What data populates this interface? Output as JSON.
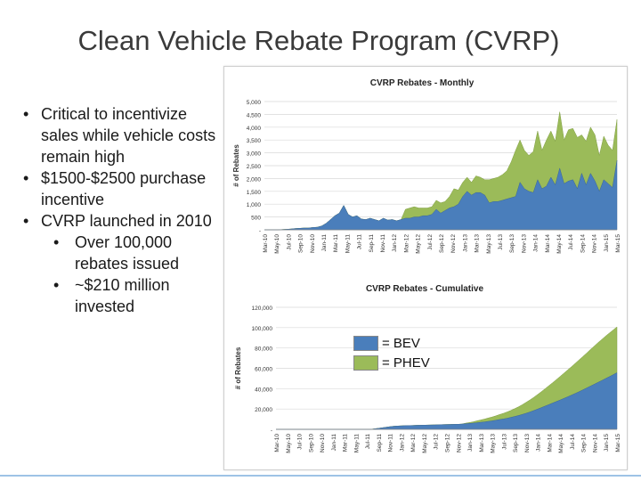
{
  "slide": {
    "title": "Clean Vehicle Rebate Program (CVRP)",
    "bullets": [
      {
        "level": 1,
        "text": "Critical to incentivize sales while vehicle costs remain high"
      },
      {
        "level": 1,
        "text": "$1500-$2500 purchase incentive"
      },
      {
        "level": 1,
        "text": "CVRP launched  in 2010"
      },
      {
        "level": 2,
        "text": "Over 100,000 rebates issued"
      },
      {
        "level": 2,
        "text": "~$210 million invested"
      }
    ],
    "bullet_glyph": "•"
  },
  "legend": {
    "items": [
      {
        "label": "= BEV",
        "color": "#4a7ebb"
      },
      {
        "label": "= PHEV",
        "color": "#9bbb59"
      }
    ]
  },
  "chart_data": [
    {
      "type": "area",
      "stacked": true,
      "title": "CVRP Rebates - Monthly",
      "ylabel": "# of Rebates",
      "xlabel": "",
      "ylim": [
        0,
        5000
      ],
      "yticks": [
        0,
        500,
        1000,
        1500,
        2000,
        2500,
        3000,
        3500,
        4000,
        4500,
        5000
      ],
      "ytick_labels": [
        "-",
        "500",
        "1,000",
        "1,500",
        "2,000",
        "2,500",
        "3,000",
        "3,500",
        "4,000",
        "4,500",
        "5,000"
      ],
      "xtick_labels": [
        "Mar-10",
        "May-10",
        "Jul-10",
        "Sep-10",
        "Nov-10",
        "Jan-11",
        "Mar-11",
        "May-11",
        "Jul-11",
        "Sep-11",
        "Nov-11",
        "Jan-12",
        "Mar-12",
        "May-12",
        "Jul-12",
        "Sep-12",
        "Nov-12",
        "Jan-13",
        "Mar-13",
        "May-13",
        "Jul-13",
        "Sep-13",
        "Nov-13",
        "Jan-14",
        "Mar-14",
        "May-14",
        "Jul-14",
        "Sep-14",
        "Nov-14",
        "Jan-15",
        "Mar-15"
      ],
      "grid": true,
      "series": [
        {
          "name": "BEV",
          "color": "#4a7ebb",
          "values": [
            0,
            0,
            0,
            0,
            10,
            20,
            30,
            50,
            60,
            70,
            70,
            90,
            100,
            150,
            250,
            400,
            550,
            650,
            950,
            600,
            500,
            550,
            420,
            400,
            450,
            400,
            350,
            450,
            380,
            400,
            350,
            400,
            450,
            450,
            500,
            500,
            550,
            550,
            600,
            800,
            650,
            750,
            850,
            900,
            1000,
            1300,
            1500,
            1350,
            1450,
            1450,
            1350,
            1050,
            1100,
            1100,
            1150,
            1200,
            1250,
            1300,
            1850,
            1600,
            1500,
            1450,
            1950,
            1600,
            1700,
            2050,
            1750,
            2400,
            1800,
            1900,
            1950,
            1600,
            2200,
            1750,
            2200,
            1900,
            1500,
            1950,
            1800,
            1650,
            2700
          ]
        },
        {
          "name": "PHEV",
          "color": "#9bbb59",
          "values": [
            0,
            0,
            0,
            0,
            0,
            0,
            0,
            0,
            0,
            0,
            0,
            0,
            0,
            0,
            0,
            0,
            0,
            0,
            0,
            0,
            0,
            0,
            0,
            0,
            0,
            0,
            0,
            0,
            0,
            0,
            0,
            0,
            350,
            400,
            400,
            350,
            300,
            300,
            300,
            350,
            400,
            350,
            450,
            700,
            550,
            550,
            550,
            500,
            650,
            600,
            600,
            900,
            900,
            950,
            1000,
            1100,
            1400,
            1800,
            1650,
            1500,
            1400,
            1600,
            1900,
            1500,
            1800,
            1800,
            1700,
            2200,
            1700,
            2000,
            2000,
            2000,
            1500,
            1700,
            1800,
            1800,
            1400,
            1700,
            1500,
            1450,
            1600
          ]
        }
      ]
    },
    {
      "type": "area",
      "stacked": true,
      "title": "CVRP Rebates - Cumulative",
      "ylabel": "# of Rebates",
      "xlabel": "",
      "ylim": [
        0,
        120000
      ],
      "yticks": [
        0,
        20000,
        40000,
        60000,
        80000,
        100000,
        120000
      ],
      "ytick_labels": [
        "-",
        "20,000",
        "40,000",
        "60,000",
        "80,000",
        "100,000",
        "120,000"
      ],
      "xtick_labels": [
        "Mar-10",
        "May-10",
        "Jul-10",
        "Sep-10",
        "Nov-10",
        "Jan-11",
        "Mar-11",
        "May-11",
        "Jul-11",
        "Sep-11",
        "Nov-11",
        "Jan-12",
        "Mar-12",
        "May-12",
        "Jul-12",
        "Sep-12",
        "Nov-12",
        "Jan-13",
        "Mar-13",
        "May-13",
        "Jul-13",
        "Sep-13",
        "Nov-13",
        "Jan-14",
        "Mar-14",
        "May-14",
        "Jul-14",
        "Sep-14",
        "Nov-14",
        "Jan-15",
        "Mar-15"
      ],
      "grid": true,
      "series": [
        {
          "name": "BEV",
          "color": "#4a7ebb",
          "values": [
            0,
            0,
            0,
            0,
            0,
            0,
            0,
            0,
            0,
            0,
            0,
            0,
            0,
            0,
            0,
            0,
            0,
            0,
            0,
            0,
            0,
            0,
            0,
            0,
            0,
            0,
            500,
            1000,
            1500,
            2000,
            2500,
            3000,
            3200,
            3400,
            3600,
            3700,
            3800,
            3900,
            4000,
            4100,
            4200,
            4300,
            4400,
            4500,
            4600,
            4700,
            4800,
            4900,
            5000,
            5200,
            5500,
            5800,
            6100,
            6500,
            6900,
            7300,
            7800,
            8300,
            8900,
            9600,
            10200,
            10900,
            11700,
            12600,
            13600,
            14600,
            15800,
            17000,
            18400,
            19800,
            21300,
            22800,
            24300,
            25800,
            27300,
            28800,
            30400,
            32000,
            33600,
            35300,
            37000,
            38800,
            40600,
            42500,
            44300,
            46200,
            48000,
            49900,
            51800,
            53700,
            55700
          ]
        },
        {
          "name": "PHEV",
          "color": "#9bbb59",
          "values": [
            0,
            0,
            0,
            0,
            0,
            0,
            0,
            0,
            0,
            0,
            0,
            0,
            0,
            0,
            0,
            0,
            0,
            0,
            0,
            0,
            0,
            0,
            0,
            0,
            0,
            0,
            0,
            0,
            0,
            0,
            0,
            0,
            0,
            0,
            0,
            0,
            0,
            0,
            0,
            0,
            0,
            0,
            0,
            0,
            0,
            0,
            0,
            0,
            0,
            0,
            500,
            900,
            1300,
            1800,
            2300,
            2800,
            3300,
            3800,
            4300,
            4900,
            5500,
            6200,
            6900,
            7700,
            8600,
            9600,
            10700,
            11800,
            13000,
            14300,
            15600,
            17000,
            18500,
            20000,
            21600,
            23200,
            24800,
            26400,
            28000,
            29600,
            31200,
            32800,
            34400,
            36000,
            37500,
            39000,
            40400,
            41700,
            42900,
            44000,
            45000
          ]
        }
      ]
    }
  ]
}
